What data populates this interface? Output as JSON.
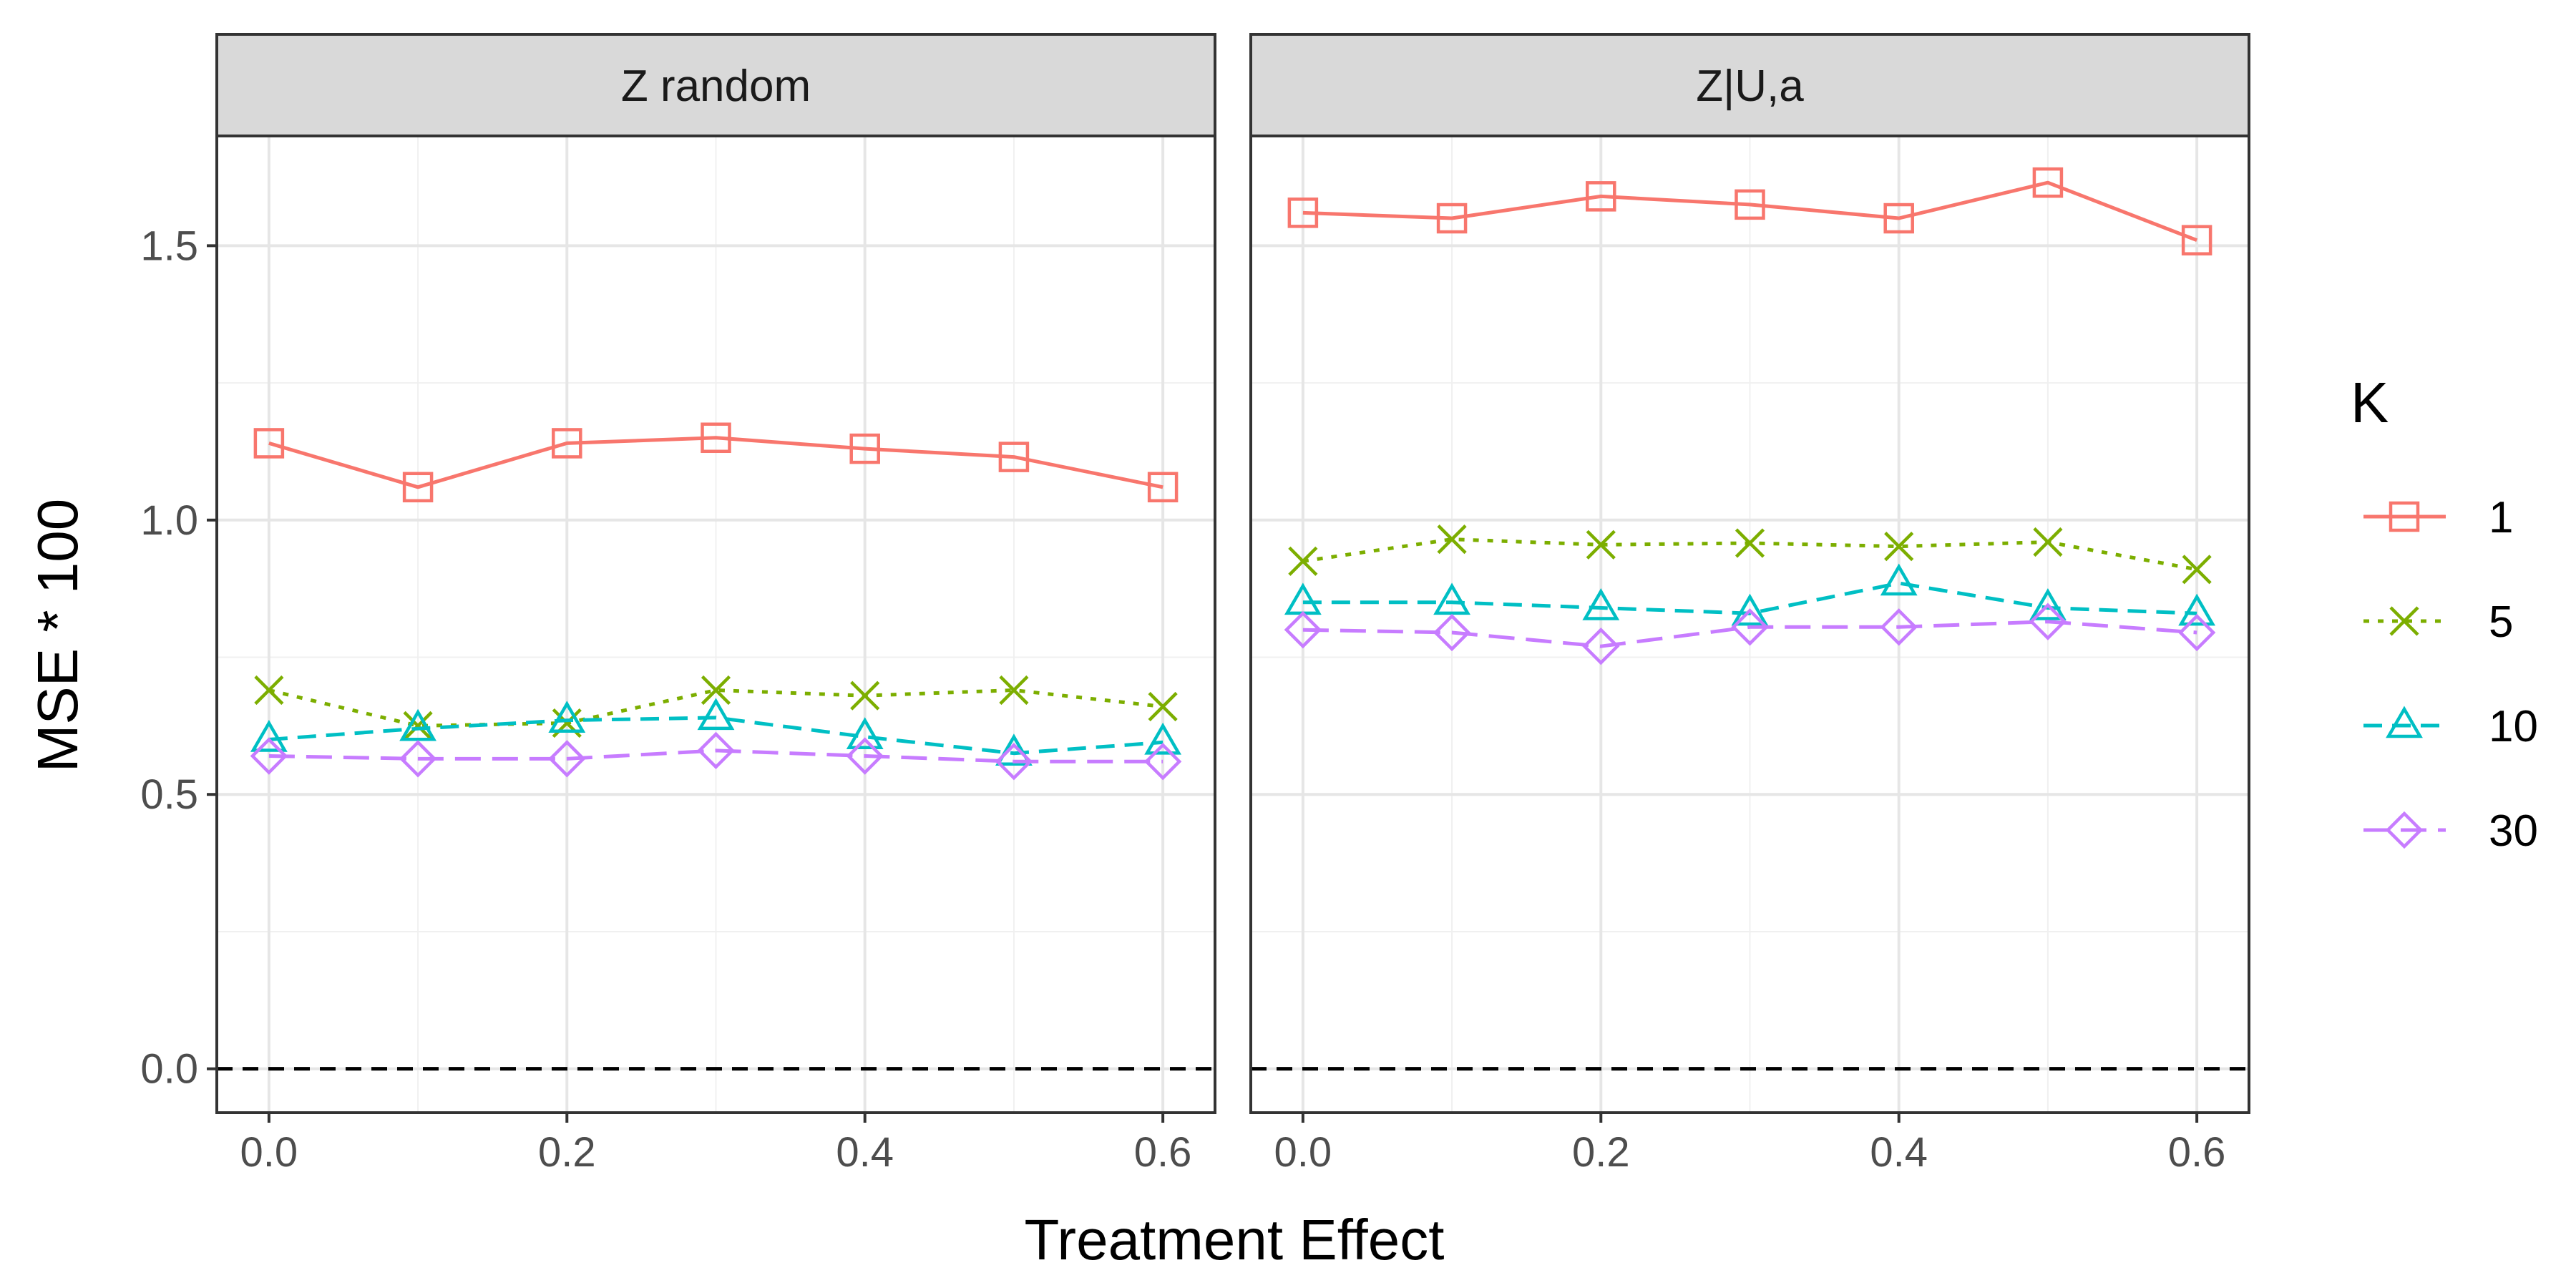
{
  "chart_data": {
    "type": "line",
    "xlabel": "Treatment Effect",
    "ylabel": "MSE * 100",
    "xlim": [
      -0.035,
      0.635
    ],
    "ylim": [
      -0.08,
      1.7
    ],
    "x_ticks": [
      "0.0",
      "0.2",
      "0.4",
      "0.6"
    ],
    "y_ticks": [
      "0.0",
      "0.5",
      "1.0",
      "1.5"
    ],
    "grid": true,
    "reference_line_y": 0.0,
    "legend": {
      "title": "K",
      "position": "right",
      "entries": [
        "1",
        "5",
        "10",
        "30"
      ]
    },
    "panels": [
      {
        "title": "Z random",
        "x": [
          0.0,
          0.1,
          0.2,
          0.3,
          0.4,
          0.5,
          0.6
        ],
        "series": [
          {
            "name": "1",
            "values": [
              1.14,
              1.06,
              1.14,
              1.15,
              1.13,
              1.115,
              1.06
            ]
          },
          {
            "name": "5",
            "values": [
              0.69,
              0.625,
              0.63,
              0.69,
              0.68,
              0.69,
              0.66
            ]
          },
          {
            "name": "10",
            "values": [
              0.6,
              0.62,
              0.635,
              0.64,
              0.605,
              0.575,
              0.595
            ]
          },
          {
            "name": "30",
            "values": [
              0.57,
              0.565,
              0.565,
              0.58,
              0.57,
              0.56,
              0.56
            ]
          }
        ]
      },
      {
        "title": "Z|U,a",
        "x": [
          0.0,
          0.1,
          0.2,
          0.3,
          0.4,
          0.5,
          0.6
        ],
        "series": [
          {
            "name": "1",
            "values": [
              1.56,
              1.55,
              1.59,
              1.575,
              1.55,
              1.615,
              1.51
            ]
          },
          {
            "name": "5",
            "values": [
              0.925,
              0.965,
              0.955,
              0.958,
              0.952,
              0.96,
              0.91
            ]
          },
          {
            "name": "10",
            "values": [
              0.85,
              0.85,
              0.84,
              0.83,
              0.885,
              0.84,
              0.83
            ]
          },
          {
            "name": "30",
            "values": [
              0.8,
              0.795,
              0.77,
              0.805,
              0.805,
              0.815,
              0.795
            ]
          }
        ]
      }
    ],
    "series_styles": [
      {
        "name": "1",
        "color": "#F8766D",
        "dash": "solid",
        "shape": "square"
      },
      {
        "name": "5",
        "color": "#7CAE00",
        "dash": "dotted",
        "shape": "x"
      },
      {
        "name": "10",
        "color": "#00BFC4",
        "dash": "dashed",
        "shape": "triangle"
      },
      {
        "name": "30",
        "color": "#C77CFF",
        "dash": "longdash",
        "shape": "diamond"
      }
    ]
  }
}
